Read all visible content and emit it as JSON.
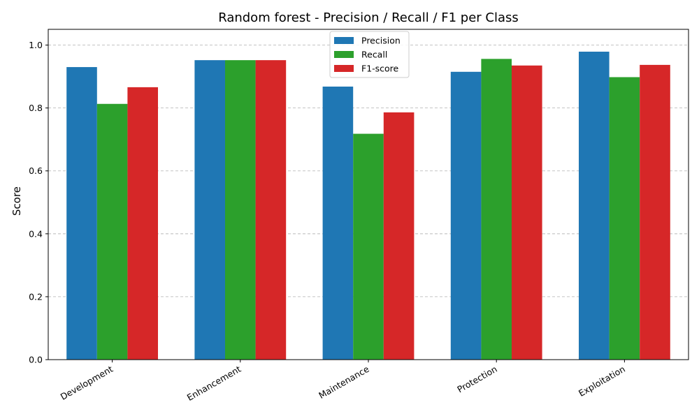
{
  "chart_data": {
    "type": "bar",
    "title": "Random forest - Precision / Recall / F1 per Class",
    "xlabel": "",
    "ylabel": "Score",
    "categories": [
      "Development",
      "Enhancement",
      "Maintenance",
      "Protection",
      "Exploitation"
    ],
    "series": [
      {
        "name": "Precision",
        "color": "#1f77b4",
        "values": [
          0.93,
          0.952,
          0.868,
          0.915,
          0.979
        ]
      },
      {
        "name": "Recall",
        "color": "#2ca02c",
        "values": [
          0.813,
          0.952,
          0.718,
          0.956,
          0.898
        ]
      },
      {
        "name": "F1-score",
        "color": "#d62728",
        "values": [
          0.866,
          0.952,
          0.786,
          0.935,
          0.937
        ]
      }
    ],
    "ylim": [
      0,
      1.05
    ],
    "yticks": [
      "0.0",
      "0.2",
      "0.4",
      "0.6",
      "0.8",
      "1.0"
    ],
    "grid": "y-dashed",
    "legend_position": "top-center"
  }
}
